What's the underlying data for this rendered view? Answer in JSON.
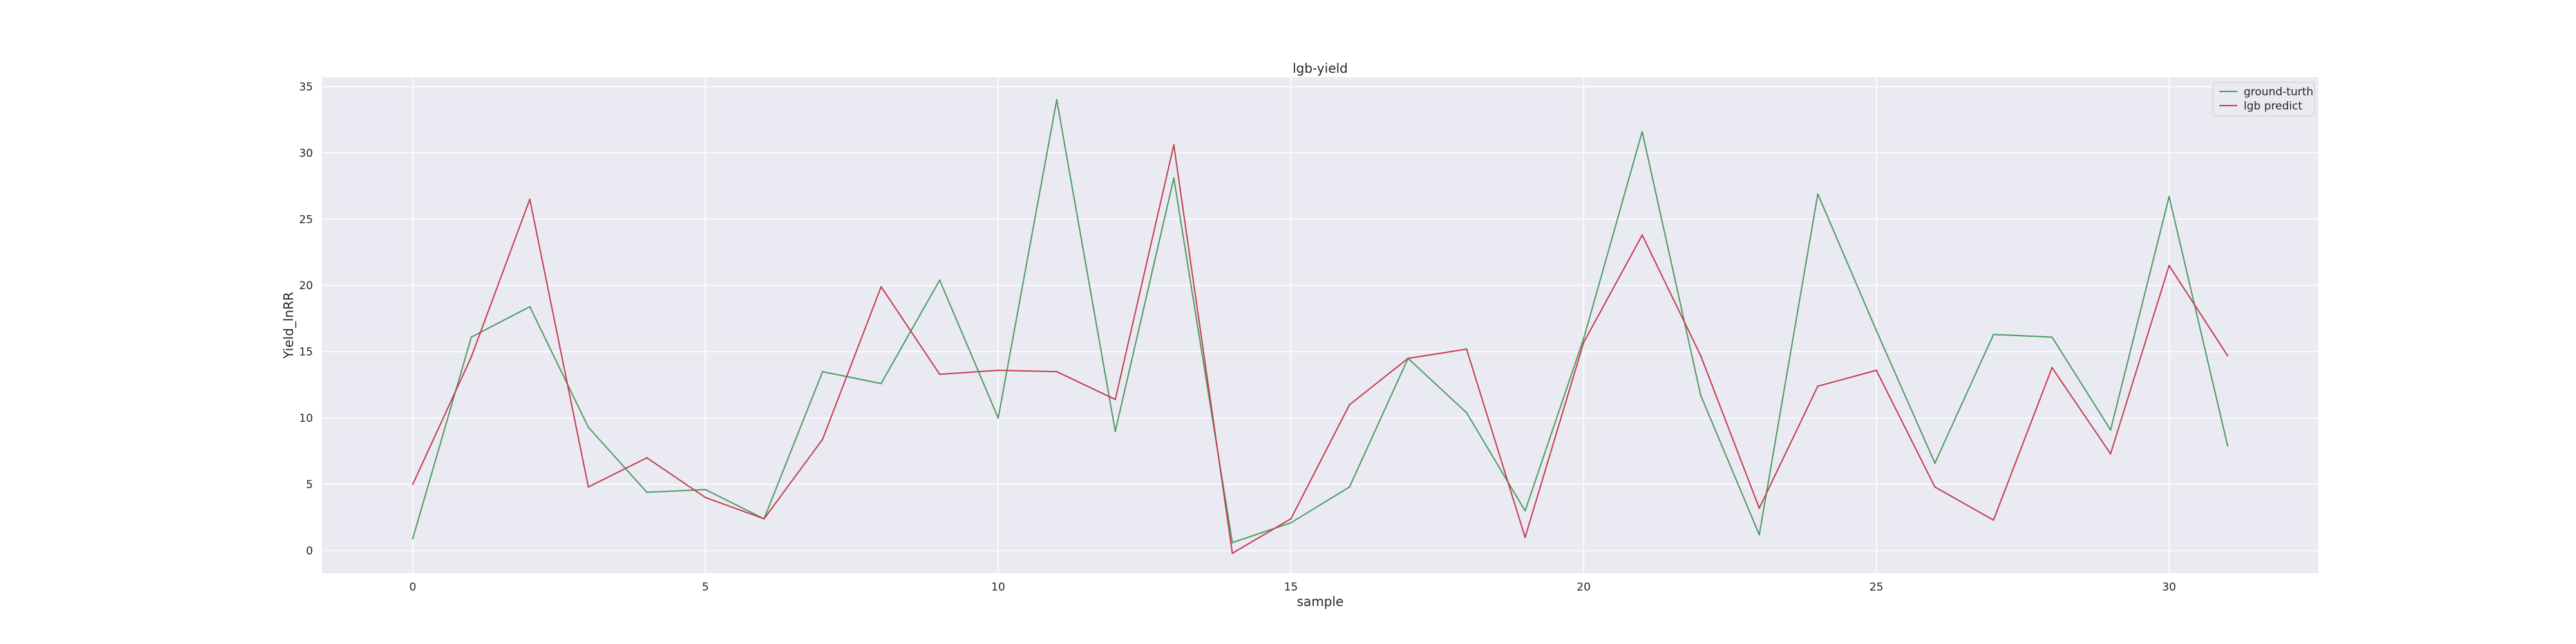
{
  "chart_data": {
    "type": "line",
    "title": "lgb-yield",
    "xlabel": "sample",
    "ylabel": "Yield_lnRR",
    "xlim": [
      -1.55,
      32.55
    ],
    "ylim": [
      -1.7,
      35.7
    ],
    "xticks": [
      0,
      5,
      10,
      15,
      20,
      25,
      30
    ],
    "yticks": [
      0,
      5,
      10,
      15,
      20,
      25,
      30,
      35
    ],
    "grid": true,
    "legend_position": "top-right",
    "x": [
      0,
      1,
      2,
      3,
      4,
      5,
      6,
      7,
      8,
      9,
      10,
      11,
      12,
      13,
      14,
      15,
      16,
      17,
      18,
      19,
      20,
      21,
      22,
      23,
      24,
      25,
      26,
      27,
      28,
      29,
      30,
      31
    ],
    "series": [
      {
        "name": "ground-turth",
        "color": "#4c9a62",
        "values": [
          0.9,
          16.1,
          18.4,
          9.3,
          4.4,
          4.6,
          2.4,
          13.5,
          12.6,
          20.4,
          10.0,
          34.0,
          9.0,
          28.1,
          0.6,
          2.1,
          4.8,
          14.5,
          10.4,
          3.0,
          16.0,
          31.6,
          11.7,
          1.2,
          26.9,
          16.6,
          6.6,
          16.3,
          16.1,
          9.1,
          26.7,
          7.9
        ]
      },
      {
        "name": "lgb predict",
        "color": "#c43c4e",
        "values": [
          5.0,
          14.6,
          26.5,
          4.8,
          7.0,
          4.0,
          2.4,
          8.4,
          19.9,
          13.3,
          13.6,
          13.5,
          11.4,
          30.6,
          -0.2,
          2.4,
          11.0,
          14.5,
          15.2,
          1.0,
          15.7,
          23.8,
          14.7,
          3.2,
          12.4,
          13.6,
          4.8,
          2.3,
          13.8,
          7.3,
          21.5,
          14.7
        ]
      }
    ]
  }
}
